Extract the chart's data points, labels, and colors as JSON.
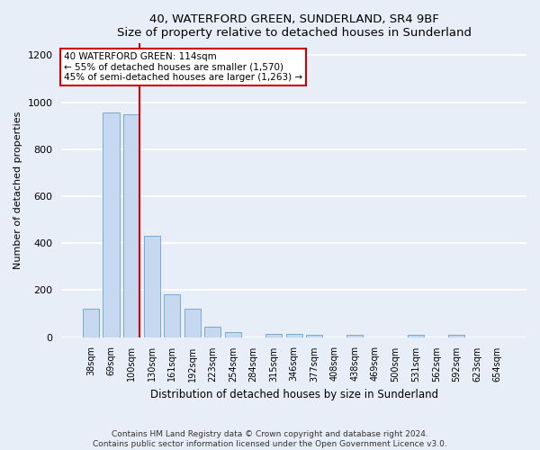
{
  "title": "40, WATERFORD GREEN, SUNDERLAND, SR4 9BF",
  "subtitle": "Size of property relative to detached houses in Sunderland",
  "xlabel": "Distribution of detached houses by size in Sunderland",
  "ylabel": "Number of detached properties",
  "categories": [
    "38sqm",
    "69sqm",
    "100sqm",
    "130sqm",
    "161sqm",
    "192sqm",
    "223sqm",
    "254sqm",
    "284sqm",
    "315sqm",
    "346sqm",
    "377sqm",
    "408sqm",
    "438sqm",
    "469sqm",
    "500sqm",
    "531sqm",
    "562sqm",
    "592sqm",
    "623sqm",
    "654sqm"
  ],
  "values": [
    120,
    955,
    948,
    430,
    182,
    120,
    43,
    20,
    0,
    15,
    15,
    10,
    0,
    10,
    0,
    0,
    10,
    0,
    10,
    0,
    0
  ],
  "bar_color": "#c5d8f0",
  "bar_edge_color": "#7aaad0",
  "vline_x_index": 2,
  "vline_color": "#cc0000",
  "annotation_text": "40 WATERFORD GREEN: 114sqm\n← 55% of detached houses are smaller (1,570)\n45% of semi-detached houses are larger (1,263) →",
  "annotation_box_color": "#ffffff",
  "annotation_box_edge_color": "#cc0000",
  "ylim": [
    0,
    1250
  ],
  "yticks": [
    0,
    200,
    400,
    600,
    800,
    1000,
    1200
  ],
  "footer": "Contains HM Land Registry data © Crown copyright and database right 2024.\nContains public sector information licensed under the Open Government Licence v3.0.",
  "background_color": "#e8eef8",
  "plot_background": "#e8eef8",
  "grid_color": "#ffffff"
}
